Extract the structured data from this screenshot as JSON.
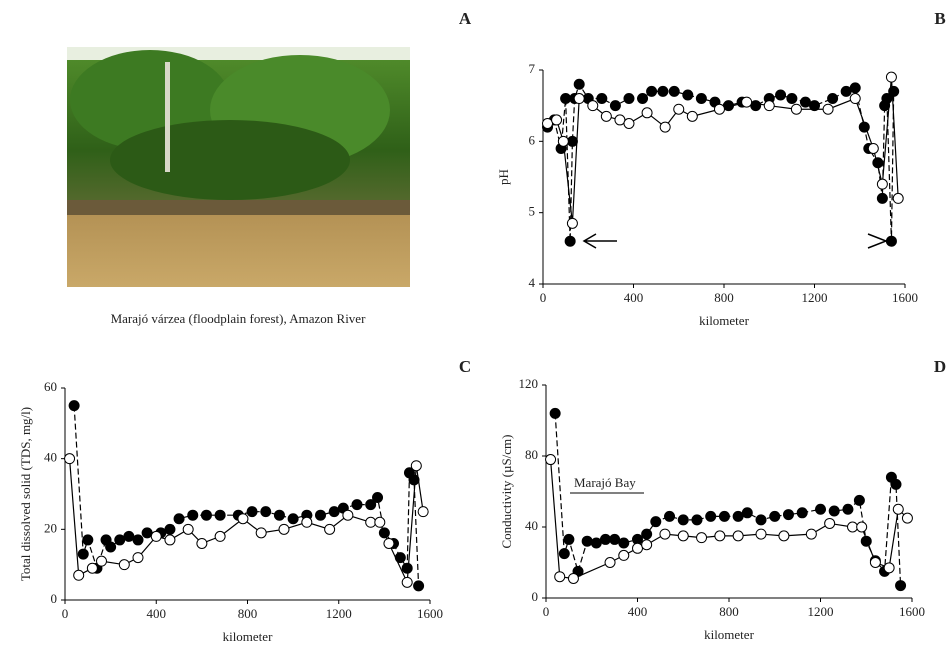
{
  "panel_a": {
    "label": "A",
    "caption": "Marajó várzea (floodplain forest), Amazon River"
  },
  "chart_data": [
    {
      "type": "scatter",
      "label": "B",
      "x_label": "kilometer",
      "y_label": "pH",
      "xlim": [
        0,
        1600
      ],
      "xticks": [
        0,
        400,
        800,
        1200,
        1600
      ],
      "ylim": [
        4,
        7
      ],
      "yticks": [
        4,
        5,
        6,
        7
      ],
      "series": [
        {
          "color": "#000000",
          "line_style": "dashed",
          "x": [
            20,
            50,
            80,
            100,
            120,
            130,
            140,
            160,
            200,
            260,
            320,
            380,
            440,
            480,
            530,
            580,
            640,
            700,
            760,
            820,
            880,
            940,
            1000,
            1050,
            1100,
            1160,
            1200,
            1280,
            1340,
            1380,
            1420,
            1440,
            1480,
            1500,
            1510,
            1520,
            1540,
            1550
          ],
          "values": [
            6.2,
            6.3,
            5.9,
            6.6,
            4.6,
            6.0,
            6.6,
            6.8,
            6.6,
            6.6,
            6.5,
            6.6,
            6.6,
            6.7,
            6.7,
            6.7,
            6.65,
            6.6,
            6.55,
            6.5,
            6.55,
            6.5,
            6.6,
            6.65,
            6.6,
            6.55,
            6.5,
            6.6,
            6.7,
            6.75,
            6.2,
            5.9,
            5.7,
            5.2,
            6.5,
            6.6,
            4.6,
            6.7
          ]
        },
        {
          "color": "#ffffff",
          "line_style": "solid",
          "x": [
            20,
            60,
            90,
            130,
            160,
            220,
            280,
            340,
            380,
            460,
            540,
            600,
            660,
            780,
            900,
            1000,
            1120,
            1260,
            1380,
            1460,
            1500,
            1540,
            1570
          ],
          "values": [
            6.25,
            6.3,
            6.0,
            4.85,
            6.6,
            6.5,
            6.35,
            6.3,
            6.25,
            6.4,
            6.2,
            6.45,
            6.35,
            6.45,
            6.55,
            6.5,
            6.45,
            6.45,
            6.6,
            5.9,
            5.4,
            6.9,
            5.2
          ]
        }
      ]
    },
    {
      "type": "scatter",
      "label": "C",
      "x_label": "kilometer",
      "y_label": "Total dissolved solid (TDS, mg/l)",
      "xlim": [
        0,
        1600
      ],
      "xticks": [
        0,
        400,
        800,
        1200,
        1600
      ],
      "ylim": [
        0,
        60
      ],
      "yticks": [
        0,
        20,
        40,
        60
      ],
      "series": [
        {
          "color": "#000000",
          "line_style": "dashed",
          "x": [
            40,
            80,
            100,
            140,
            180,
            200,
            240,
            280,
            320,
            360,
            420,
            460,
            500,
            560,
            620,
            680,
            760,
            820,
            880,
            940,
            1000,
            1060,
            1120,
            1180,
            1220,
            1280,
            1340,
            1370,
            1400,
            1440,
            1470,
            1500,
            1510,
            1530,
            1550
          ],
          "values": [
            55,
            13,
            17,
            9,
            17,
            15,
            17,
            18,
            17,
            19,
            19,
            20,
            23,
            24,
            24,
            24,
            24,
            25,
            25,
            24,
            23,
            24,
            24,
            25,
            26,
            27,
            27,
            29,
            19,
            16,
            12,
            9,
            36,
            34,
            4
          ]
        },
        {
          "color": "#ffffff",
          "line_style": "solid",
          "x": [
            20,
            60,
            120,
            160,
            260,
            320,
            400,
            460,
            540,
            600,
            680,
            780,
            860,
            960,
            1060,
            1160,
            1240,
            1340,
            1380,
            1420,
            1500,
            1540,
            1570
          ],
          "values": [
            40,
            7,
            9,
            11,
            10,
            12,
            18,
            17,
            20,
            16,
            18,
            23,
            19,
            20,
            22,
            20,
            24,
            22,
            22,
            16,
            5,
            38,
            25
          ]
        }
      ]
    },
    {
      "type": "scatter",
      "label": "D",
      "x_label": "kilometer",
      "y_label": "Conductivity (µS/cm)",
      "xlim": [
        0,
        1600
      ],
      "xticks": [
        0,
        400,
        800,
        1200,
        1600
      ],
      "ylim": [
        0,
        120
      ],
      "yticks": [
        0,
        40,
        80,
        120
      ],
      "annotation": "Marajó Bay",
      "series": [
        {
          "color": "#000000",
          "line_style": "dashed",
          "x": [
            40,
            80,
            100,
            140,
            180,
            220,
            260,
            300,
            340,
            400,
            440,
            480,
            540,
            600,
            660,
            720,
            780,
            840,
            880,
            940,
            1000,
            1060,
            1120,
            1200,
            1260,
            1320,
            1370,
            1400,
            1440,
            1480,
            1510,
            1530,
            1550
          ],
          "values": [
            104,
            25,
            33,
            15,
            32,
            31,
            33,
            33,
            31,
            33,
            36,
            43,
            46,
            44,
            44,
            46,
            46,
            46,
            48,
            44,
            46,
            47,
            48,
            50,
            49,
            50,
            55,
            32,
            21,
            15,
            68,
            64,
            7
          ]
        },
        {
          "color": "#ffffff",
          "line_style": "solid",
          "x": [
            20,
            60,
            120,
            280,
            340,
            400,
            440,
            520,
            600,
            680,
            760,
            840,
            940,
            1040,
            1160,
            1240,
            1340,
            1380,
            1440,
            1500,
            1540,
            1580
          ],
          "values": [
            78,
            12,
            11,
            20,
            24,
            28,
            30,
            36,
            35,
            34,
            35,
            35,
            36,
            35,
            36,
            42,
            40,
            40,
            20,
            17,
            50,
            45
          ]
        }
      ]
    }
  ]
}
